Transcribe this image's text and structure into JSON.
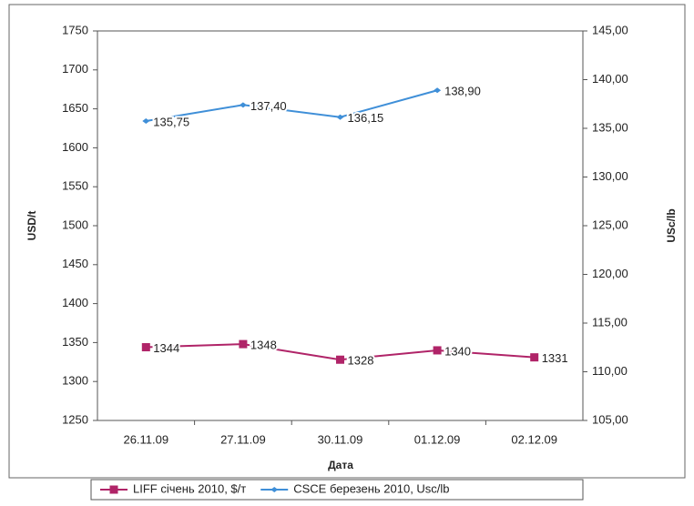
{
  "chart_data": {
    "type": "line",
    "categories": [
      "26.11.09",
      "27.11.09",
      "30.11.09",
      "01.12.09",
      "02.12.09"
    ],
    "x_label": "Дата",
    "y_label": "USD/t",
    "y2_label": "USc/lb",
    "series": [
      {
        "name": "LIFF січень 2010, $/т",
        "color": "#b02468",
        "marker": "square",
        "values": [
          1344,
          1348,
          1328,
          1340,
          1331
        ]
      },
      {
        "name": "CSCE березень 2010, Usc/lb",
        "color": "#3f8fd8",
        "marker": "diamond",
        "axis": "y2",
        "values": [
          135.75,
          137.4,
          136.15,
          138.9,
          null
        ],
        "value_labels": [
          "135,75",
          "137,40",
          "136,15",
          "138,90",
          null
        ]
      }
    ],
    "ylim": [
      1250,
      1750
    ],
    "yticks": [
      1250,
      1300,
      1350,
      1400,
      1450,
      1500,
      1550,
      1600,
      1650,
      1700,
      1750
    ],
    "y2lim": [
      105,
      145
    ],
    "y2ticks": [
      {
        "value": 105,
        "label": "105,00"
      },
      {
        "value": 110,
        "label": "110,00"
      },
      {
        "value": 115,
        "label": "115,00"
      },
      {
        "value": 120,
        "label": "120,00"
      },
      {
        "value": 125,
        "label": "125,00"
      },
      {
        "value": 130,
        "label": "130,00"
      },
      {
        "value": 135,
        "label": "135,00"
      },
      {
        "value": 140,
        "label": "140,00"
      },
      {
        "value": 145,
        "label": "145,00"
      }
    ],
    "grid": false,
    "legend": "bottom"
  }
}
